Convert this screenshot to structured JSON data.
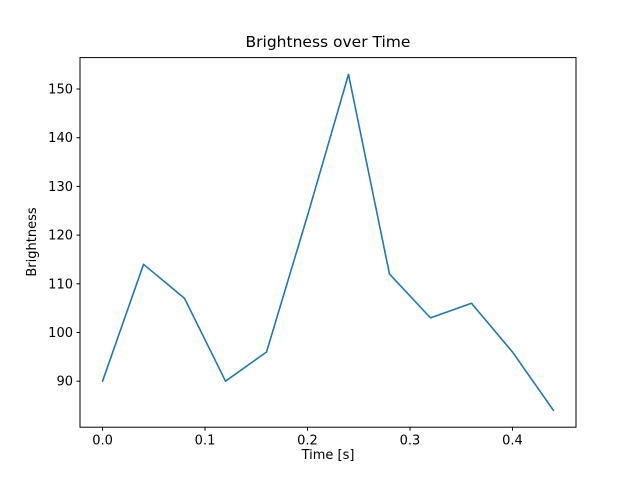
{
  "chart_data": {
    "type": "line",
    "title": "Brightness over Time",
    "xlabel": "Time [s]",
    "ylabel": "Brightness",
    "x": [
      0.0,
      0.04,
      0.08,
      0.12,
      0.16,
      0.2,
      0.24,
      0.28,
      0.32,
      0.36,
      0.4,
      0.44
    ],
    "values": [
      90,
      114,
      107,
      90,
      96,
      124,
      153,
      112,
      103,
      106,
      96,
      84
    ],
    "xlim": [
      -0.022,
      0.462
    ],
    "ylim": [
      80.55,
      156.45
    ],
    "xticks": [
      0.0,
      0.1,
      0.2,
      0.3,
      0.4
    ],
    "xtick_labels": [
      "0.0",
      "0.1",
      "0.2",
      "0.3",
      "0.4"
    ],
    "yticks": [
      90,
      100,
      110,
      120,
      130,
      140,
      150
    ],
    "ytick_labels": [
      "90",
      "100",
      "110",
      "120",
      "130",
      "140",
      "150"
    ],
    "line_color": "#1f77b4",
    "spine_color": "#000000",
    "background_color": "#ffffff",
    "grid": false,
    "legend": "none"
  }
}
